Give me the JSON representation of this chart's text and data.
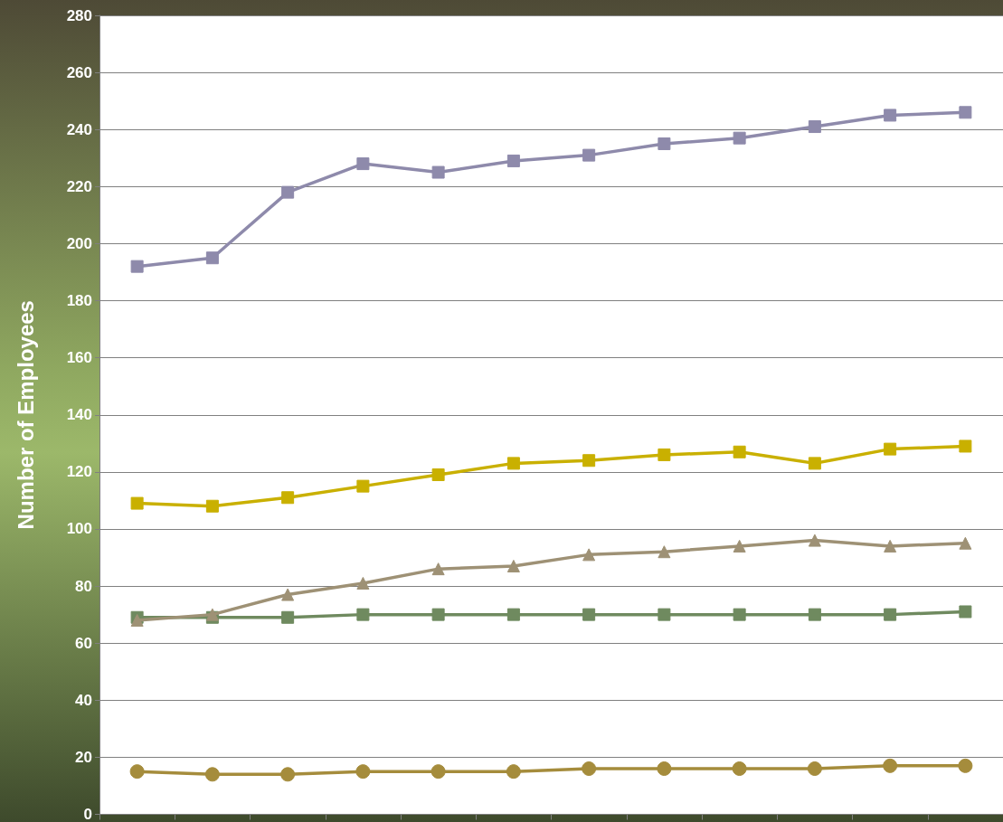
{
  "chart_data": {
    "type": "line",
    "ylabel": "Number of Employees",
    "categories": [
      null,
      null,
      null,
      null,
      null,
      null,
      null,
      null,
      null,
      null,
      null,
      null
    ],
    "ylim": [
      0,
      280
    ],
    "yticks": [
      0,
      20,
      40,
      60,
      80,
      100,
      120,
      140,
      160,
      180,
      200,
      220,
      240,
      260,
      280
    ],
    "grid": "y",
    "line_style": "solid",
    "series": [
      {
        "color": "#8e8aab",
        "marker": "square",
        "values": [
          192,
          195,
          218,
          228,
          225,
          229,
          231,
          235,
          237,
          241,
          245,
          246
        ]
      },
      {
        "color": "#c9b000",
        "marker": "square",
        "values": [
          109,
          108,
          111,
          115,
          119,
          123,
          124,
          126,
          127,
          123,
          128,
          129
        ]
      },
      {
        "color": "#9e9175",
        "marker": "triangle",
        "values": [
          68,
          70,
          77,
          81,
          86,
          87,
          91,
          92,
          94,
          96,
          94,
          95
        ]
      },
      {
        "color": "#6f8a5f",
        "marker": "square",
        "values": [
          69,
          69,
          69,
          70,
          70,
          70,
          70,
          70,
          70,
          70,
          70,
          71
        ]
      },
      {
        "color": "#a58c3c",
        "marker": "circle",
        "values": [
          15,
          14,
          14,
          15,
          15,
          15,
          16,
          16,
          16,
          16,
          17,
          17
        ]
      }
    ]
  }
}
